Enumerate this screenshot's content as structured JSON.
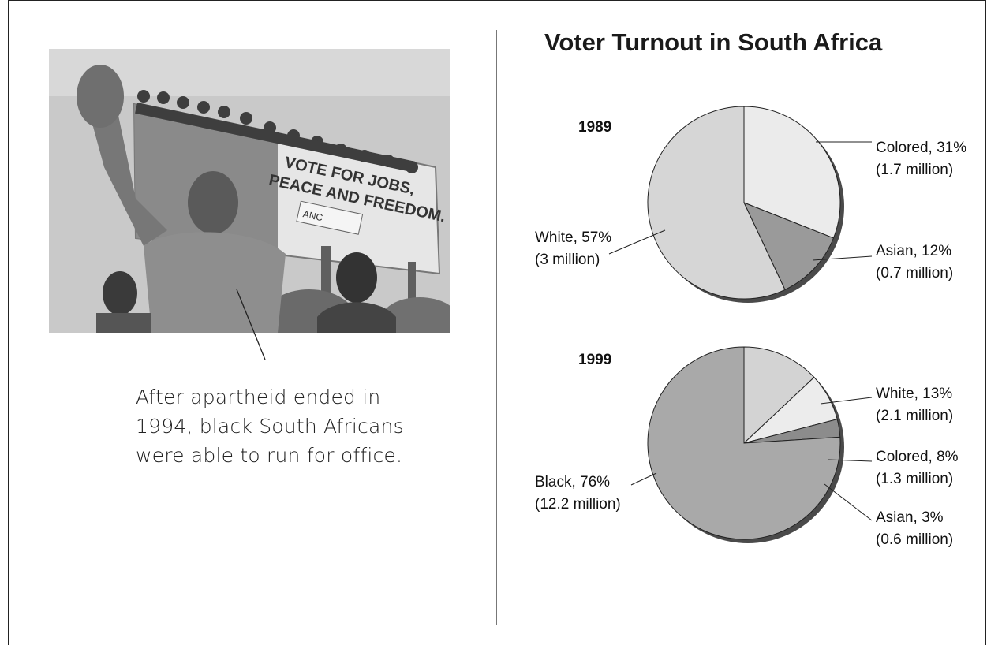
{
  "caption": {
    "lines": [
      "After apartheid ended in",
      "1994, black South Africans",
      "were able to run for office."
    ]
  },
  "photo": {
    "billboard_lines": [
      "VOTE FOR JOBS,",
      "PEACE AND FREEDOM."
    ],
    "badge": "ANC"
  },
  "chart_data": {
    "title": "Voter Turnout in South Africa",
    "type": "pie",
    "charts": [
      {
        "year": "1989",
        "slices": [
          {
            "name": "Colored",
            "percent": 31,
            "votes": "1.7 million",
            "label_line1": "Colored, 31%",
            "label_line2": "(1.7 million)",
            "color": "#ebebeb"
          },
          {
            "name": "Asian",
            "percent": 12,
            "votes": "0.7 million",
            "label_line1": "Asian, 12%",
            "label_line2": "(0.7 million)",
            "color": "#9a9a9a"
          },
          {
            "name": "White",
            "percent": 57,
            "votes": "3 million",
            "label_line1": "White, 57%",
            "label_line2": "(3 million)",
            "color": "#d6d6d6"
          }
        ]
      },
      {
        "year": "1999",
        "slices": [
          {
            "name": "White",
            "percent": 13,
            "votes": "2.1 million",
            "label_line1": "White, 13%",
            "label_line2": "(2.1 million)",
            "color": "#d3d3d3"
          },
          {
            "name": "Colored",
            "percent": 8,
            "votes": "1.3 million",
            "label_line1": "Colored, 8%",
            "label_line2": "(1.3 million)",
            "color": "#ececec"
          },
          {
            "name": "Asian",
            "percent": 3,
            "votes": "0.6 million",
            "label_line1": "Asian, 3%",
            "label_line2": "(0.6 million)",
            "color": "#8c8c8c"
          },
          {
            "name": "Black",
            "percent": 76,
            "votes": "12.2 million",
            "label_line1": "Black, 76%",
            "label_line2": "(12.2 million)",
            "color": "#a9a9a9"
          }
        ]
      }
    ]
  }
}
